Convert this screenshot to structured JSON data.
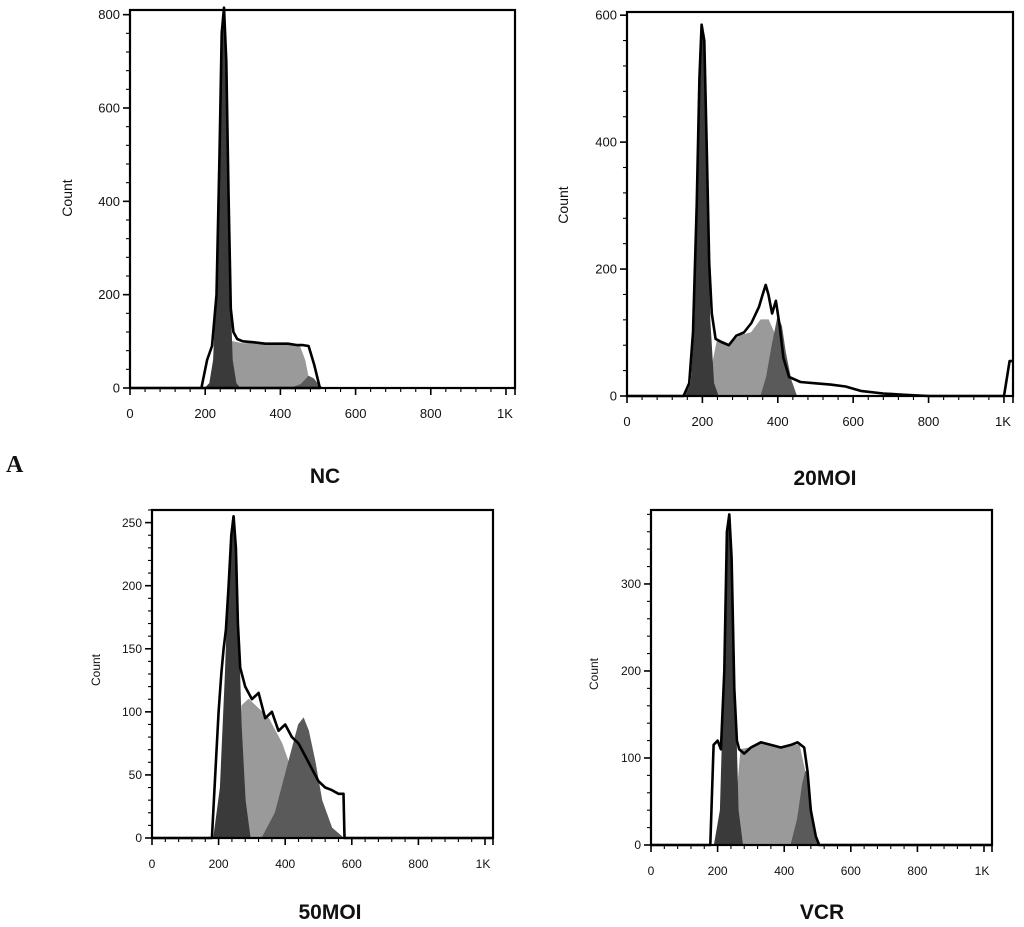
{
  "figure_label": "A",
  "colors": {
    "outline": "#000000",
    "g1_fill": "#3a3a3a",
    "s_fill": "#9a9a9a",
    "g2_fill": "#5a5a5a"
  },
  "chart_data": [
    {
      "type": "area",
      "title": "NC",
      "ylabel": "Count",
      "xlim": [
        0,
        1024
      ],
      "ylim": [
        0,
        810
      ],
      "xticks": [
        0,
        200,
        400,
        600,
        800,
        1024
      ],
      "xtick_labels": [
        "0",
        "200",
        "400",
        "600",
        "800",
        "1K"
      ],
      "yticks": [
        0,
        200,
        400,
        600,
        800
      ],
      "ytick_labels": [
        "0",
        "200",
        "400",
        "600",
        "800"
      ],
      "series": [
        {
          "role": "outline",
          "x": [
            0,
            190,
            205,
            218,
            230,
            238,
            244,
            250,
            256,
            262,
            268,
            275,
            285,
            300,
            330,
            360,
            390,
            420,
            445,
            460,
            475,
            490,
            505,
            0
          ],
          "y": [
            0,
            0,
            60,
            90,
            200,
            500,
            760,
            815,
            700,
            420,
            170,
            120,
            105,
            100,
            98,
            95,
            95,
            95,
            92,
            92,
            90,
            50,
            0,
            0
          ]
        },
        {
          "role": "g1",
          "x": [
            200,
            212,
            222,
            232,
            240,
            246,
            252,
            258,
            264,
            272,
            282,
            292
          ],
          "y": [
            0,
            10,
            60,
            250,
            600,
            790,
            815,
            600,
            250,
            60,
            10,
            0
          ]
        },
        {
          "role": "s",
          "x": [
            250,
            270,
            300,
            330,
            360,
            390,
            420,
            450,
            465,
            480
          ],
          "y": [
            0,
            100,
            95,
            96,
            94,
            95,
            94,
            92,
            60,
            0
          ]
        },
        {
          "role": "g2",
          "x": [
            430,
            455,
            475,
            488,
            500,
            512
          ],
          "y": [
            0,
            8,
            25,
            20,
            8,
            0
          ]
        }
      ]
    },
    {
      "type": "area",
      "title": "20MOI",
      "ylabel": "Count",
      "xlim": [
        0,
        1024
      ],
      "ylim": [
        0,
        605
      ],
      "xticks": [
        0,
        200,
        400,
        600,
        800,
        1024
      ],
      "xtick_labels": [
        "0",
        "200",
        "400",
        "600",
        "800",
        "1K"
      ],
      "yticks": [
        0,
        200,
        400,
        600
      ],
      "ytick_labels": [
        "0",
        "200",
        "400",
        "600"
      ],
      "series": [
        {
          "role": "outline",
          "x": [
            0,
            150,
            165,
            175,
            185,
            192,
            198,
            205,
            212,
            218,
            225,
            235,
            250,
            270,
            290,
            310,
            330,
            350,
            360,
            368,
            375,
            385,
            395,
            405,
            415,
            430,
            460,
            500,
            540,
            580,
            620,
            680,
            730,
            800,
            1000,
            1015,
            1024
          ],
          "y": [
            0,
            0,
            20,
            100,
            300,
            500,
            585,
            560,
            380,
            210,
            130,
            90,
            85,
            80,
            95,
            100,
            115,
            140,
            160,
            175,
            160,
            130,
            150,
            110,
            60,
            30,
            22,
            20,
            18,
            15,
            8,
            4,
            2,
            0,
            0,
            55,
            55
          ]
        },
        {
          "role": "g1",
          "x": [
            155,
            170,
            180,
            188,
            195,
            200,
            206,
            212,
            220,
            230,
            242
          ],
          "y": [
            0,
            20,
            120,
            350,
            550,
            585,
            550,
            350,
            120,
            20,
            0
          ]
        },
        {
          "role": "s",
          "x": [
            210,
            240,
            270,
            300,
            330,
            355,
            375,
            390,
            405,
            420
          ],
          "y": [
            0,
            90,
            82,
            95,
            100,
            120,
            120,
            100,
            50,
            0
          ]
        },
        {
          "role": "g2",
          "x": [
            355,
            370,
            385,
            400,
            410,
            420,
            435,
            450
          ],
          "y": [
            0,
            30,
            80,
            125,
            110,
            70,
            25,
            0
          ]
        }
      ]
    },
    {
      "type": "area",
      "title": "50MOI",
      "ylabel": "Count",
      "xlim": [
        0,
        1024
      ],
      "ylim": [
        0,
        260
      ],
      "xticks": [
        0,
        200,
        400,
        600,
        800,
        1024
      ],
      "xtick_labels": [
        "0",
        "200",
        "400",
        "600",
        "800",
        "1K"
      ],
      "yticks": [
        0,
        50,
        100,
        150,
        200,
        250
      ],
      "ytick_labels": [
        "0",
        "50",
        "100",
        "150",
        "200",
        "250"
      ],
      "series": [
        {
          "role": "outline",
          "x": [
            0,
            180,
            192,
            200,
            208,
            215,
            222,
            230,
            238,
            245,
            252,
            258,
            265,
            280,
            300,
            320,
            340,
            360,
            380,
            400,
            420,
            440,
            460,
            480,
            500,
            520,
            540,
            560,
            575,
            578,
            1024
          ],
          "y": [
            0,
            0,
            60,
            100,
            130,
            150,
            165,
            200,
            240,
            255,
            230,
            170,
            135,
            120,
            110,
            115,
            95,
            100,
            85,
            90,
            80,
            75,
            65,
            55,
            45,
            40,
            38,
            35,
            35,
            0,
            0
          ]
        },
        {
          "role": "g1",
          "x": [
            185,
            205,
            220,
            232,
            242,
            250,
            258,
            268,
            280,
            295
          ],
          "y": [
            0,
            40,
            130,
            220,
            255,
            240,
            180,
            90,
            30,
            0
          ]
        },
        {
          "role": "s",
          "x": [
            250,
            270,
            290,
            310,
            330,
            350,
            370,
            390,
            410,
            420
          ],
          "y": [
            0,
            105,
            110,
            105,
            100,
            95,
            85,
            75,
            60,
            50
          ]
        },
        {
          "role": "g2",
          "x": [
            330,
            370,
            410,
            440,
            455,
            470,
            490,
            510,
            540,
            575
          ],
          "y": [
            0,
            20,
            60,
            90,
            95,
            85,
            60,
            30,
            8,
            0
          ]
        }
      ]
    },
    {
      "type": "area",
      "title": "VCR",
      "ylabel": "Count",
      "xlim": [
        0,
        1024
      ],
      "ylim": [
        0,
        385
      ],
      "xticks": [
        0,
        200,
        400,
        600,
        800,
        1024
      ],
      "xtick_labels": [
        "0",
        "200",
        "400",
        "600",
        "800",
        "1K"
      ],
      "yticks": [
        0,
        100,
        200,
        300
      ],
      "ytick_labels": [
        "0",
        "100",
        "200",
        "300"
      ],
      "series": [
        {
          "role": "outline",
          "x": [
            0,
            178,
            188,
            200,
            210,
            220,
            228,
            235,
            242,
            250,
            258,
            265,
            280,
            300,
            330,
            360,
            390,
            420,
            440,
            460,
            470,
            480,
            495,
            505,
            1024
          ],
          "y": [
            0,
            0,
            115,
            120,
            110,
            200,
            360,
            380,
            330,
            180,
            120,
            110,
            105,
            112,
            118,
            115,
            112,
            115,
            118,
            112,
            85,
            40,
            10,
            0,
            0
          ]
        },
        {
          "role": "g1",
          "x": [
            190,
            208,
            220,
            228,
            235,
            242,
            252,
            262,
            275
          ],
          "y": [
            0,
            40,
            200,
            340,
            380,
            340,
            180,
            40,
            0
          ]
        },
        {
          "role": "s",
          "x": [
            245,
            270,
            300,
            330,
            360,
            390,
            420,
            445,
            465,
            480
          ],
          "y": [
            0,
            110,
            112,
            118,
            115,
            112,
            115,
            115,
            80,
            0
          ]
        },
        {
          "role": "g2",
          "x": [
            420,
            440,
            455,
            465,
            475,
            488,
            500
          ],
          "y": [
            0,
            30,
            70,
            85,
            60,
            25,
            0
          ]
        }
      ]
    }
  ]
}
